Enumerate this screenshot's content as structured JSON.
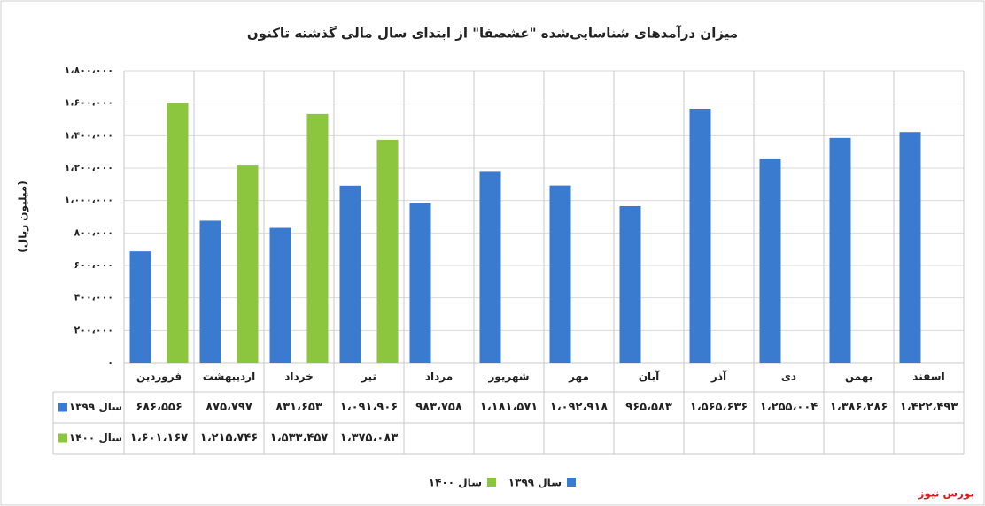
{
  "chart_data": {
    "type": "bar",
    "title": "میزان درآمدهای شناسایی‌شده \"غشصفا\" از ابتدای سال مالی گذشته تاکنون",
    "y_label": "(میلیون ریال)",
    "source": "بورس نیوز",
    "categories": [
      "فروردین",
      "اردیبهشت",
      "خرداد",
      "تیر",
      "مرداد",
      "شهریور",
      "مهر",
      "آبان",
      "آذر",
      "دی",
      "بهمن",
      "اسفند"
    ],
    "series": [
      {
        "name": "سال ۱۳۹۹",
        "color": "#3a7bd0",
        "values": [
          686556,
          875797,
          831653,
          1091906,
          983758,
          1181571,
          1092918,
          965583,
          1565636,
          1255004,
          1386286,
          1422493
        ],
        "value_labels": [
          "۶۸۶،۵۵۶",
          "۸۷۵،۷۹۷",
          "۸۳۱،۶۵۳",
          "۱،۰۹۱،۹۰۶",
          "۹۸۳،۷۵۸",
          "۱،۱۸۱،۵۷۱",
          "۱،۰۹۲،۹۱۸",
          "۹۶۵،۵۸۳",
          "۱،۵۶۵،۶۳۶",
          "۱،۲۵۵،۰۰۴",
          "۱،۳۸۶،۲۸۶",
          "۱،۴۲۲،۴۹۳"
        ]
      },
      {
        "name": "سال ۱۴۰۰",
        "color": "#8cc63f",
        "values": [
          1601167,
          1215746,
          1533457,
          1375083,
          null,
          null,
          null,
          null,
          null,
          null,
          null,
          null
        ],
        "value_labels": [
          "۱،۶۰۱،۱۶۷",
          "۱،۲۱۵،۷۴۶",
          "۱،۵۳۳،۴۵۷",
          "۱،۳۷۵،۰۸۳",
          null,
          null,
          null,
          null,
          null,
          null,
          null,
          null
        ]
      }
    ],
    "ylim": [
      0,
      1800000
    ],
    "yticks": [
      {
        "value": 0,
        "label": "۰"
      },
      {
        "value": 200000,
        "label": "۲۰۰،۰۰۰"
      },
      {
        "value": 400000,
        "label": "۴۰۰،۰۰۰"
      },
      {
        "value": 600000,
        "label": "۶۰۰،۰۰۰"
      },
      {
        "value": 800000,
        "label": "۸۰۰،۰۰۰"
      },
      {
        "value": 1000000,
        "label": "۱،۰۰۰،۰۰۰"
      },
      {
        "value": 1200000,
        "label": "۱،۲۰۰،۰۰۰"
      },
      {
        "value": 1400000,
        "label": "۱،۴۰۰،۰۰۰"
      },
      {
        "value": 1600000,
        "label": "۱،۶۰۰،۰۰۰"
      },
      {
        "value": 1800000,
        "label": "۱،۸۰۰،۰۰۰"
      }
    ],
    "grid": true
  }
}
